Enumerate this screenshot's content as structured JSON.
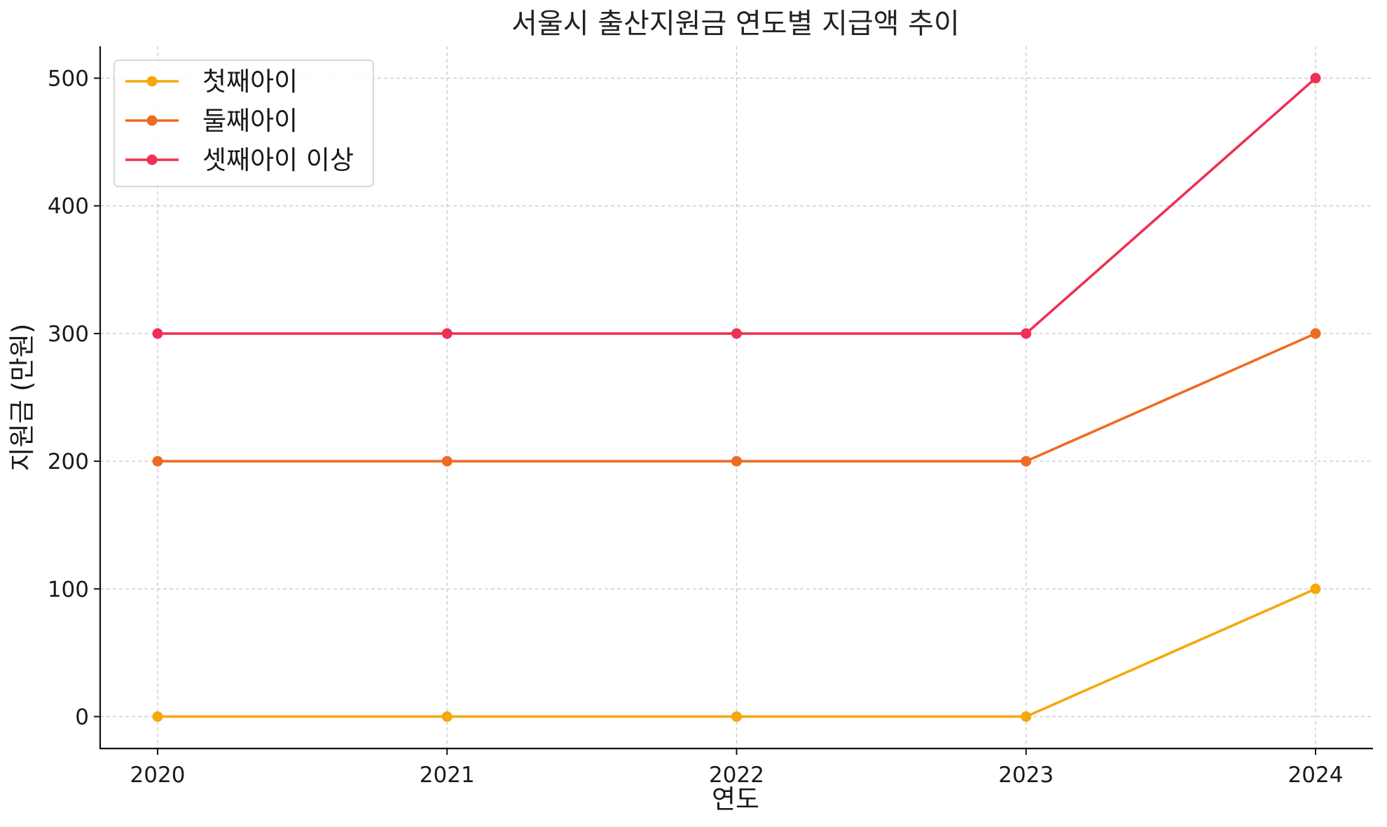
{
  "chart_data": {
    "type": "line",
    "title": "서울시 출산지원금 연도별 지급액 추이",
    "xlabel": "연도",
    "ylabel": "지원금 (만원)",
    "x": [
      "2020",
      "2021",
      "2022",
      "2023",
      "2024"
    ],
    "yticks": [
      0,
      100,
      200,
      300,
      400,
      500
    ],
    "ylim": [
      -25,
      525
    ],
    "grid": true,
    "legend_position": "upper-left",
    "series": [
      {
        "name": "첫째아이",
        "color": "#F5A80A",
        "values": [
          0,
          0,
          0,
          0,
          100
        ]
      },
      {
        "name": "둘째아이",
        "color": "#EE6B22",
        "values": [
          200,
          200,
          200,
          200,
          300
        ]
      },
      {
        "name": "셋째아이 이상",
        "color": "#EE3054",
        "values": [
          300,
          300,
          300,
          300,
          500
        ]
      }
    ]
  }
}
